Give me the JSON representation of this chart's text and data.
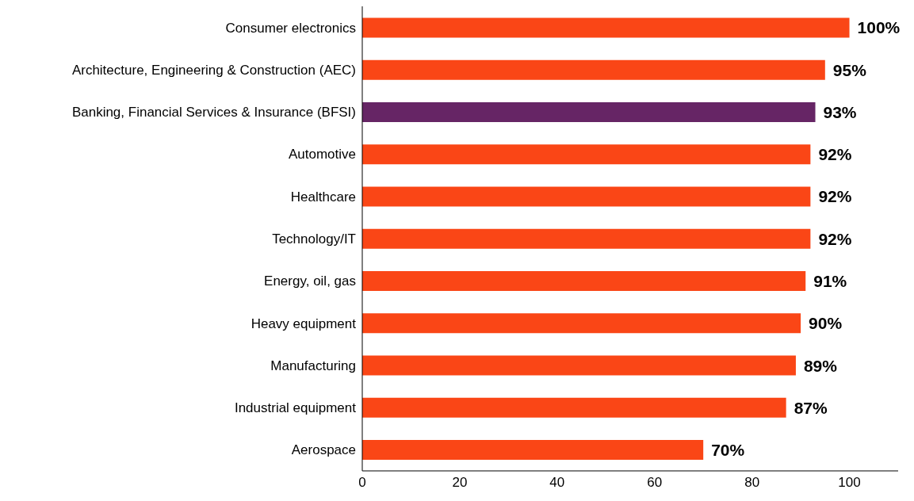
{
  "chart_data": {
    "type": "bar",
    "orientation": "horizontal",
    "categories": [
      "Consumer electronics",
      "Architecture, Engineering & Construction (AEC)",
      "Banking, Financial Services & Insurance (BFSI)",
      "Automotive",
      "Healthcare",
      "Technology/IT",
      "Energy, oil, gas",
      "Heavy equipment",
      "Manufacturing",
      "Industrial equipment",
      "Aerospace"
    ],
    "values": [
      100,
      95,
      93,
      92,
      92,
      92,
      91,
      90,
      89,
      87,
      70
    ],
    "colors": [
      "#fa4616",
      "#fa4616",
      "#662565",
      "#fa4616",
      "#fa4616",
      "#fa4616",
      "#fa4616",
      "#fa4616",
      "#fa4616",
      "#fa4616",
      "#fa4616"
    ],
    "value_labels": [
      "100%",
      "95%",
      "93%",
      "92%",
      "92%",
      "92%",
      "91%",
      "90%",
      "89%",
      "87%",
      "70%"
    ],
    "xlim": [
      0,
      110
    ],
    "xticks": [
      0,
      20,
      40,
      60,
      80,
      100
    ],
    "grid": false,
    "legend": false
  }
}
